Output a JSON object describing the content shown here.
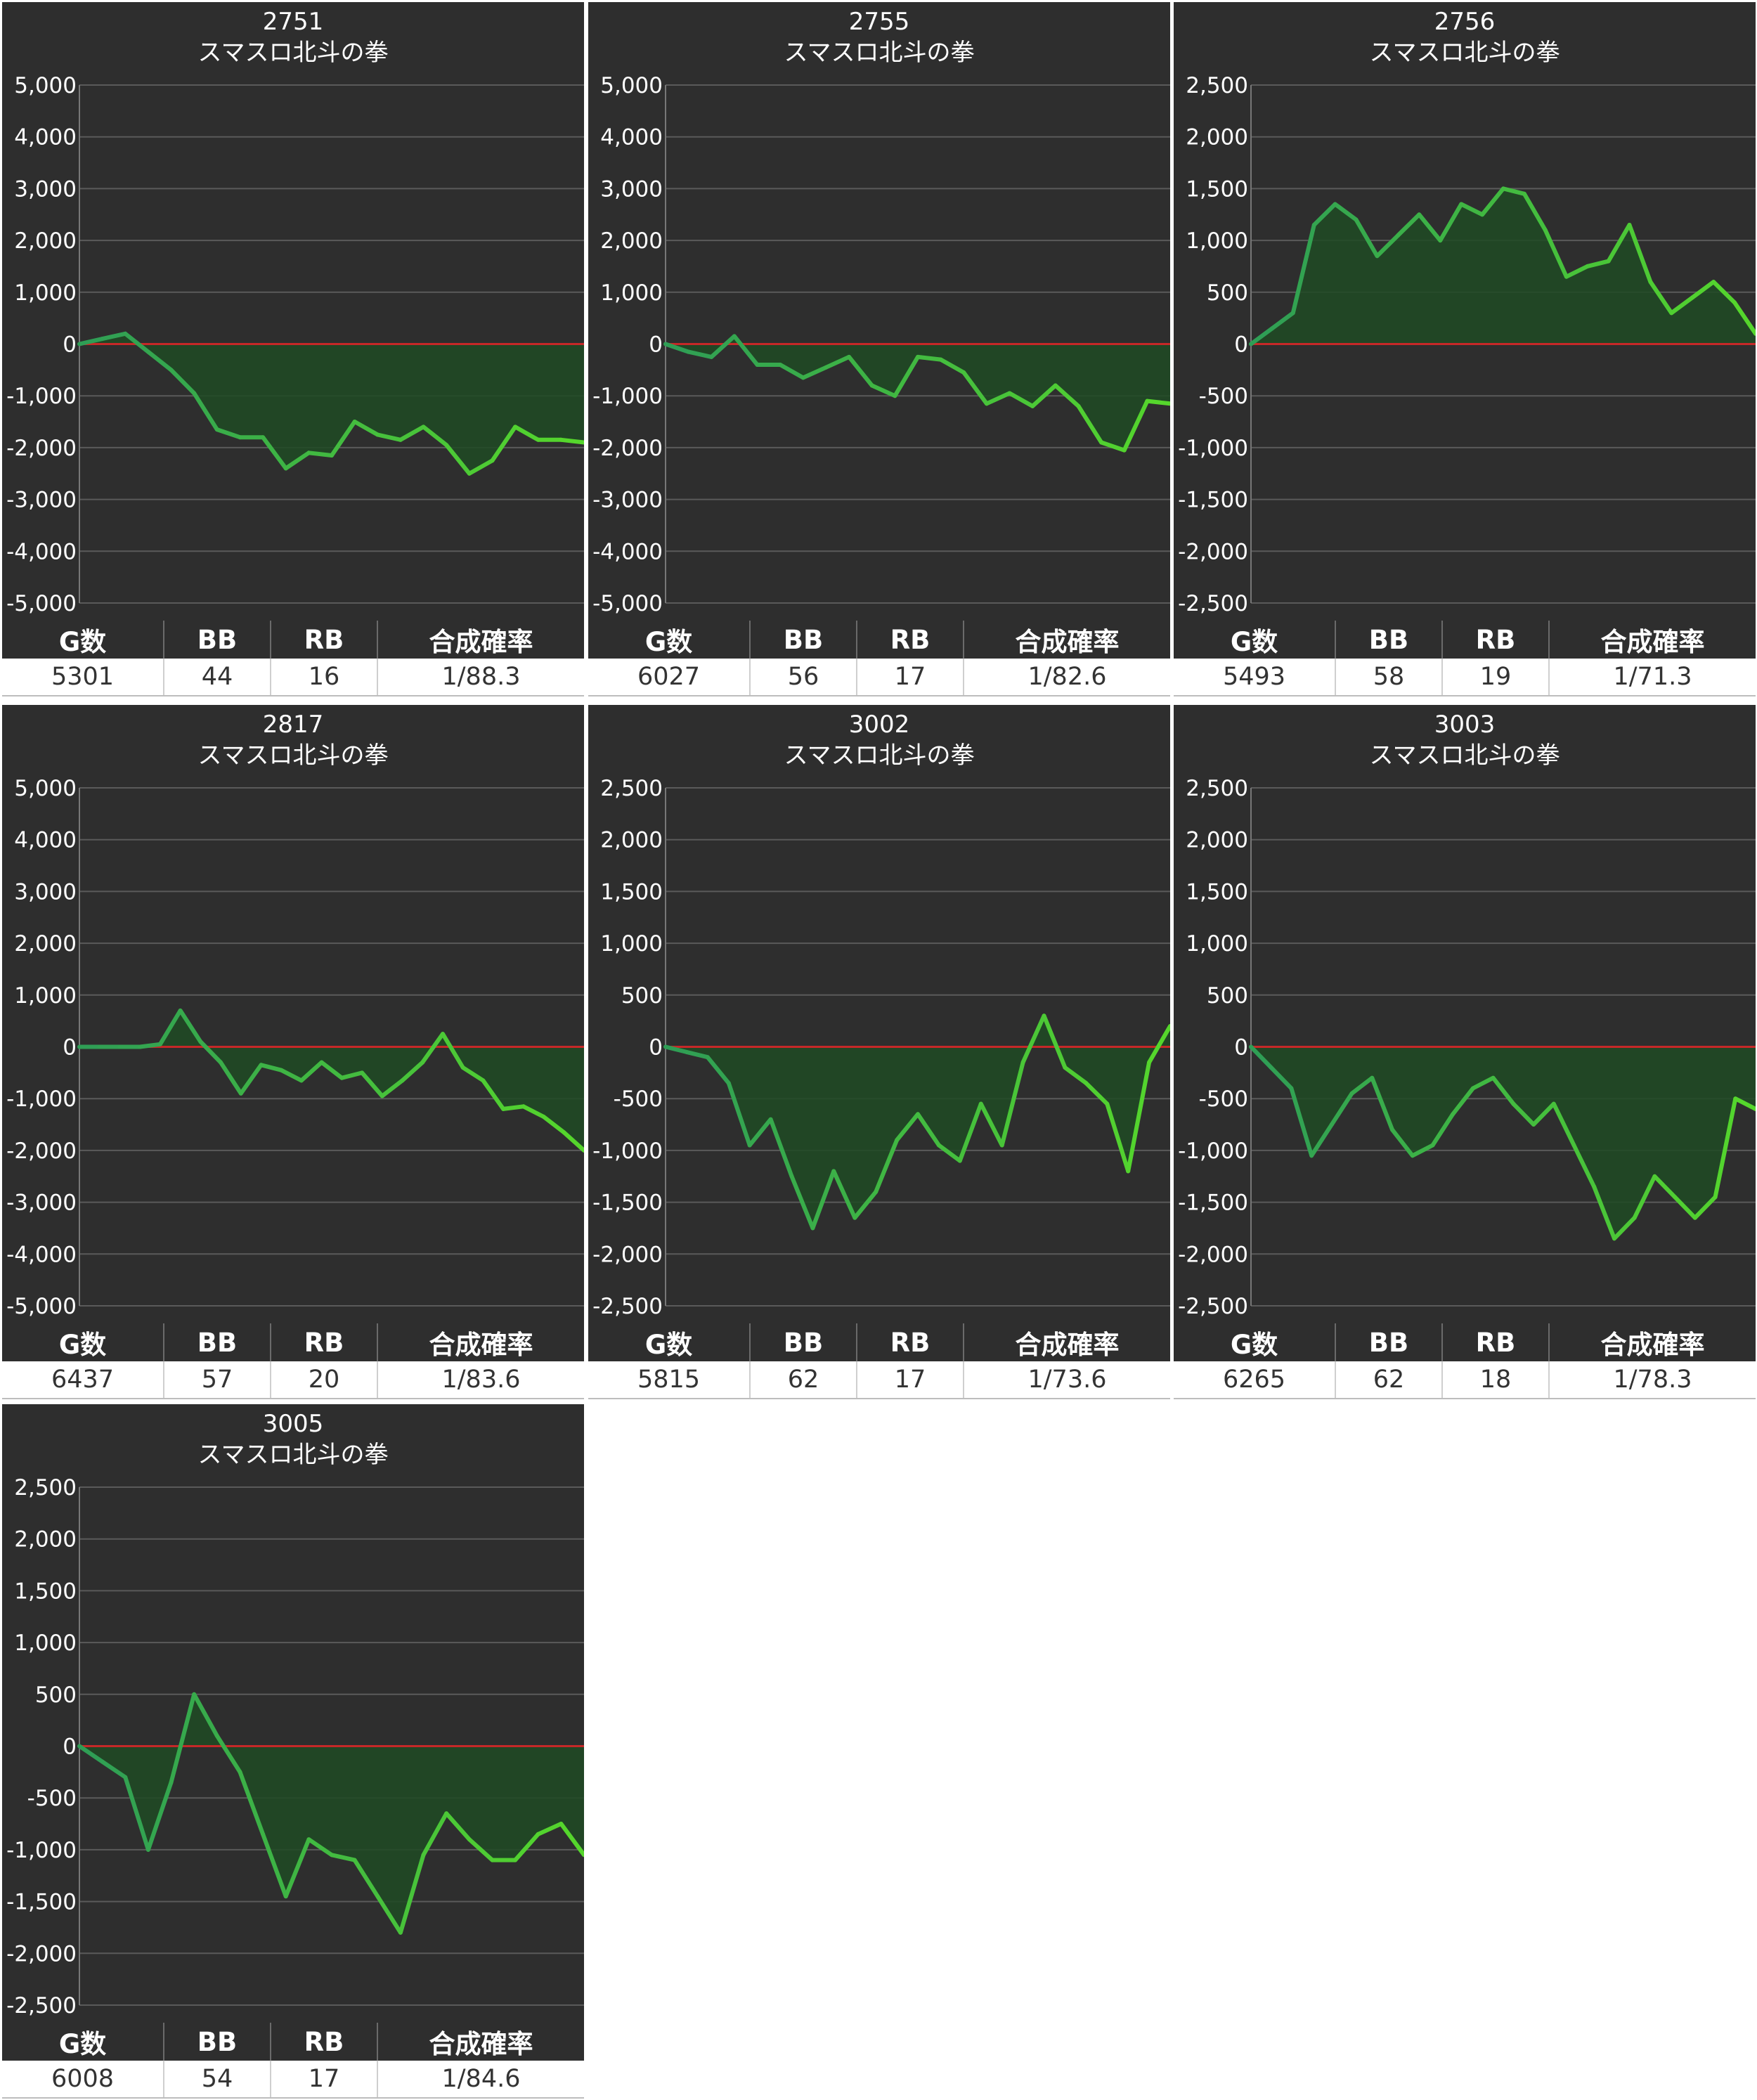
{
  "colors": {
    "panel_bg": "#2e2e2e",
    "line": "#44c944",
    "fill": "#1e4a23",
    "zero_line": "#c62828",
    "grid": "#5a5a5a",
    "text": "#ffffff"
  },
  "table_headers": [
    "G数",
    "BB",
    "RB",
    "合成確率"
  ],
  "chart_data": [
    {
      "type": "area",
      "title": "2751",
      "subtitle": "スマスロ北斗の拳",
      "ylim": [
        -5000,
        5000
      ],
      "yticks": [
        "5,000",
        "4,000",
        "3,000",
        "2,000",
        "1,000",
        "0",
        "-1,000",
        "-2,000",
        "-3,000",
        "-4,000",
        "-5,000"
      ],
      "values": [
        0,
        100,
        200,
        -150,
        -500,
        -950,
        -1650,
        -1800,
        -1800,
        -2400,
        -2100,
        -2150,
        -1500,
        -1750,
        -1850,
        -1600,
        -1950,
        -2500,
        -2250,
        -1600,
        -1850,
        -1850,
        -1900
      ],
      "stats": {
        "g": "5301",
        "bb": "44",
        "rb": "16",
        "prob": "1/88.3"
      }
    },
    {
      "type": "area",
      "title": "2755",
      "subtitle": "スマスロ北斗の拳",
      "ylim": [
        -5000,
        5000
      ],
      "yticks": [
        "5,000",
        "4,000",
        "3,000",
        "2,000",
        "1,000",
        "0",
        "-1,000",
        "-2,000",
        "-3,000",
        "-4,000",
        "-5,000"
      ],
      "values": [
        0,
        -150,
        -250,
        150,
        -400,
        -400,
        -650,
        -450,
        -250,
        -800,
        -1000,
        -250,
        -300,
        -550,
        -1150,
        -950,
        -1200,
        -800,
        -1200,
        -1900,
        -2050,
        -1100,
        -1150
      ],
      "stats": {
        "g": "6027",
        "bb": "56",
        "rb": "17",
        "prob": "1/82.6"
      }
    },
    {
      "type": "area",
      "title": "2756",
      "subtitle": "スマスロ北斗の拳",
      "ylim": [
        -2500,
        2500
      ],
      "yticks": [
        "2,500",
        "2,000",
        "1,500",
        "1,000",
        "500",
        "0",
        "-500",
        "-1,000",
        "-1,500",
        "-2,000",
        "-2,500"
      ],
      "values": [
        0,
        150,
        300,
        1150,
        1350,
        1200,
        850,
        1050,
        1250,
        1000,
        1350,
        1250,
        1500,
        1450,
        1100,
        650,
        750,
        800,
        1150,
        600,
        300,
        450,
        600,
        400,
        100
      ],
      "stats": {
        "g": "5493",
        "bb": "58",
        "rb": "19",
        "prob": "1/71.3"
      }
    },
    {
      "type": "area",
      "title": "2817",
      "subtitle": "スマスロ北斗の拳",
      "ylim": [
        -5000,
        5000
      ],
      "yticks": [
        "5,000",
        "4,000",
        "3,000",
        "2,000",
        "1,000",
        "0",
        "-1,000",
        "-2,000",
        "-3,000",
        "-4,000",
        "-5,000"
      ],
      "values": [
        0,
        0,
        0,
        0,
        50,
        700,
        100,
        -300,
        -900,
        -350,
        -450,
        -650,
        -300,
        -600,
        -500,
        -950,
        -650,
        -300,
        250,
        -400,
        -650,
        -1200,
        -1150,
        -1350,
        -1650,
        -2000
      ],
      "stats": {
        "g": "6437",
        "bb": "57",
        "rb": "20",
        "prob": "1/83.6"
      }
    },
    {
      "type": "area",
      "title": "3002",
      "subtitle": "スマスロ北斗の拳",
      "ylim": [
        -2500,
        2500
      ],
      "yticks": [
        "2,500",
        "2,000",
        "1,500",
        "1,000",
        "500",
        "0",
        "-500",
        "-1,000",
        "-1,500",
        "-2,000",
        "-2,500"
      ],
      "values": [
        0,
        -50,
        -100,
        -350,
        -950,
        -700,
        -1250,
        -1750,
        -1200,
        -1650,
        -1400,
        -900,
        -650,
        -950,
        -1100,
        -550,
        -950,
        -150,
        300,
        -200,
        -350,
        -550,
        -1200,
        -150,
        200
      ],
      "stats": {
        "g": "5815",
        "bb": "62",
        "rb": "17",
        "prob": "1/73.6"
      }
    },
    {
      "type": "area",
      "title": "3003",
      "subtitle": "スマスロ北斗の拳",
      "ylim": [
        -2500,
        2500
      ],
      "yticks": [
        "2,500",
        "2,000",
        "1,500",
        "1,000",
        "500",
        "0",
        "-500",
        "-1,000",
        "-1,500",
        "-2,000",
        "-2,500"
      ],
      "values": [
        0,
        -200,
        -400,
        -1050,
        -750,
        -450,
        -300,
        -800,
        -1050,
        -950,
        -650,
        -400,
        -300,
        -550,
        -750,
        -550,
        -950,
        -1350,
        -1850,
        -1650,
        -1250,
        -1450,
        -1650,
        -1450,
        -500,
        -600
      ],
      "stats": {
        "g": "6265",
        "bb": "62",
        "rb": "18",
        "prob": "1/78.3"
      }
    },
    {
      "type": "area",
      "title": "3005",
      "subtitle": "スマスロ北斗の拳",
      "ylim": [
        -2500,
        2500
      ],
      "yticks": [
        "2,500",
        "2,000",
        "1,500",
        "1,000",
        "500",
        "0",
        "-500",
        "-1,000",
        "-1,500",
        "-2,000",
        "-2,500"
      ],
      "values": [
        0,
        -150,
        -300,
        -1000,
        -350,
        500,
        100,
        -250,
        -850,
        -1450,
        -900,
        -1050,
        -1100,
        -1450,
        -1800,
        -1050,
        -650,
        -900,
        -1100,
        -1100,
        -850,
        -750,
        -1050
      ],
      "stats": {
        "g": "6008",
        "bb": "54",
        "rb": "17",
        "prob": "1/84.6"
      }
    }
  ]
}
